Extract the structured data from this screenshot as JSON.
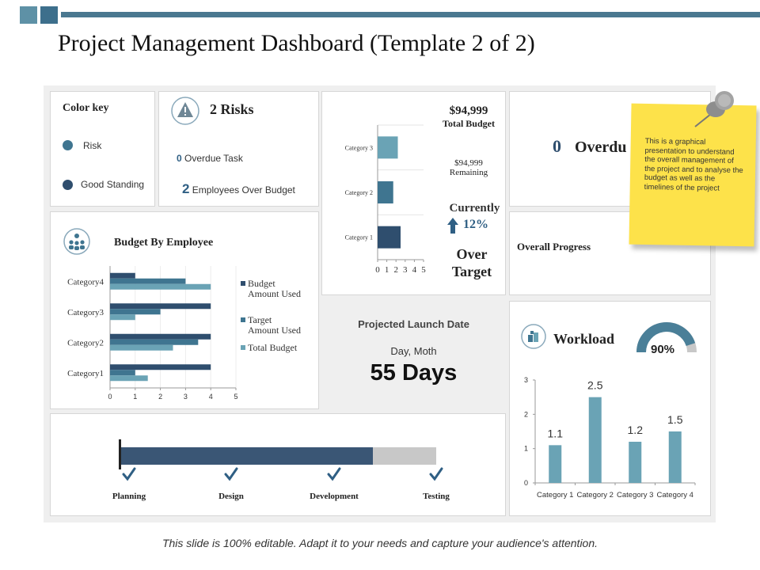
{
  "page": {
    "title": "Project Management Dashboard (Template 2 of 2)",
    "footer": "This slide is 100% editable. Adapt it to your needs and capture your audience's attention."
  },
  "colors": {
    "dark": "#2f4e6e",
    "mid": "#3f7590",
    "light": "#6aa3b5",
    "gray": "#c8c8c8",
    "note": "#fde24a"
  },
  "color_key": {
    "title": "Color key",
    "items": [
      {
        "label": "Risk",
        "color": "#3f7590"
      },
      {
        "label": "Good Standing",
        "color": "#2f4e6e"
      }
    ]
  },
  "risks": {
    "count_label": "2 Risks",
    "icon": "warning-icon",
    "lines": [
      {
        "num": "0",
        "label": " Overdue  Task"
      },
      {
        "num": "2",
        "label": " Employees  Over Budget"
      }
    ]
  },
  "budget_panel": {
    "total": "$94,999",
    "total_label": "Total Budget",
    "remaining": "$94,999",
    "remaining_label": "Remaining",
    "currently_label": "Currently",
    "currently_value": "12%",
    "over_target": "Over",
    "over_target_2": "Target"
  },
  "overdue": {
    "num": "0",
    "label": "Overdu"
  },
  "sticky_note": {
    "text": "This is a graphical presentation to understand the overall management  of the project and to analyse the budget as well as the timelines of the project",
    "icon": "pushpin-icon"
  },
  "overall_progress": {
    "label": "Overall Progress"
  },
  "budget_by_employee": {
    "title": "Budget By Employee",
    "icon": "team-icon"
  },
  "launch": {
    "title": "Projected Launch Date",
    "subtitle": "Day, Moth",
    "value": "55 Days"
  },
  "workload": {
    "title": "Workload",
    "icon": "workload-icon",
    "gauge_value": "90%",
    "gauge_fraction": 0.9
  },
  "timeline": {
    "progress_fraction": 0.8,
    "stages": [
      {
        "label": "Planning"
      },
      {
        "label": "Design"
      },
      {
        "label": "Development"
      },
      {
        "label": "Testing"
      }
    ]
  },
  "chart_data": [
    {
      "id": "budget-mini",
      "type": "bar",
      "orientation": "horizontal",
      "categories": [
        "Category 1",
        "Category 2",
        "Category 3"
      ],
      "values": [
        2.5,
        1.7,
        2.2
      ],
      "xlim": [
        0,
        5
      ],
      "xticks": [
        "0",
        "1",
        "2",
        "3",
        "4",
        "5"
      ],
      "color": "#3f7590"
    },
    {
      "id": "budget-by-employee",
      "type": "bar",
      "orientation": "horizontal",
      "categories": [
        "Category1",
        "Category2",
        "Category3",
        "Category4"
      ],
      "series": [
        {
          "name": "Budget Amount Used",
          "values": [
            4,
            4,
            4,
            1
          ],
          "color": "#2f4e6e"
        },
        {
          "name": "Target Amount Used",
          "values": [
            1,
            3.5,
            2,
            3
          ],
          "color": "#3f7590"
        },
        {
          "name": "Total Budget",
          "values": [
            1.5,
            2.5,
            1,
            4
          ],
          "color": "#6aa3b5"
        }
      ],
      "xlim": [
        0,
        5
      ],
      "xticks": [
        "0",
        "1",
        "2",
        "3",
        "4",
        "5"
      ],
      "legend": "right"
    },
    {
      "id": "workload",
      "type": "bar",
      "categories": [
        "Category 1",
        "Category 2",
        "Category 3",
        "Category 4"
      ],
      "values": [
        1.1,
        2.5,
        1.2,
        1.5
      ],
      "data_labels": [
        "1.1",
        "2.5",
        "1.2",
        "1.5"
      ],
      "ylim": [
        0,
        3
      ],
      "yticks": [
        "0",
        "1",
        "2",
        "3"
      ],
      "color": "#6aa3b5"
    }
  ]
}
